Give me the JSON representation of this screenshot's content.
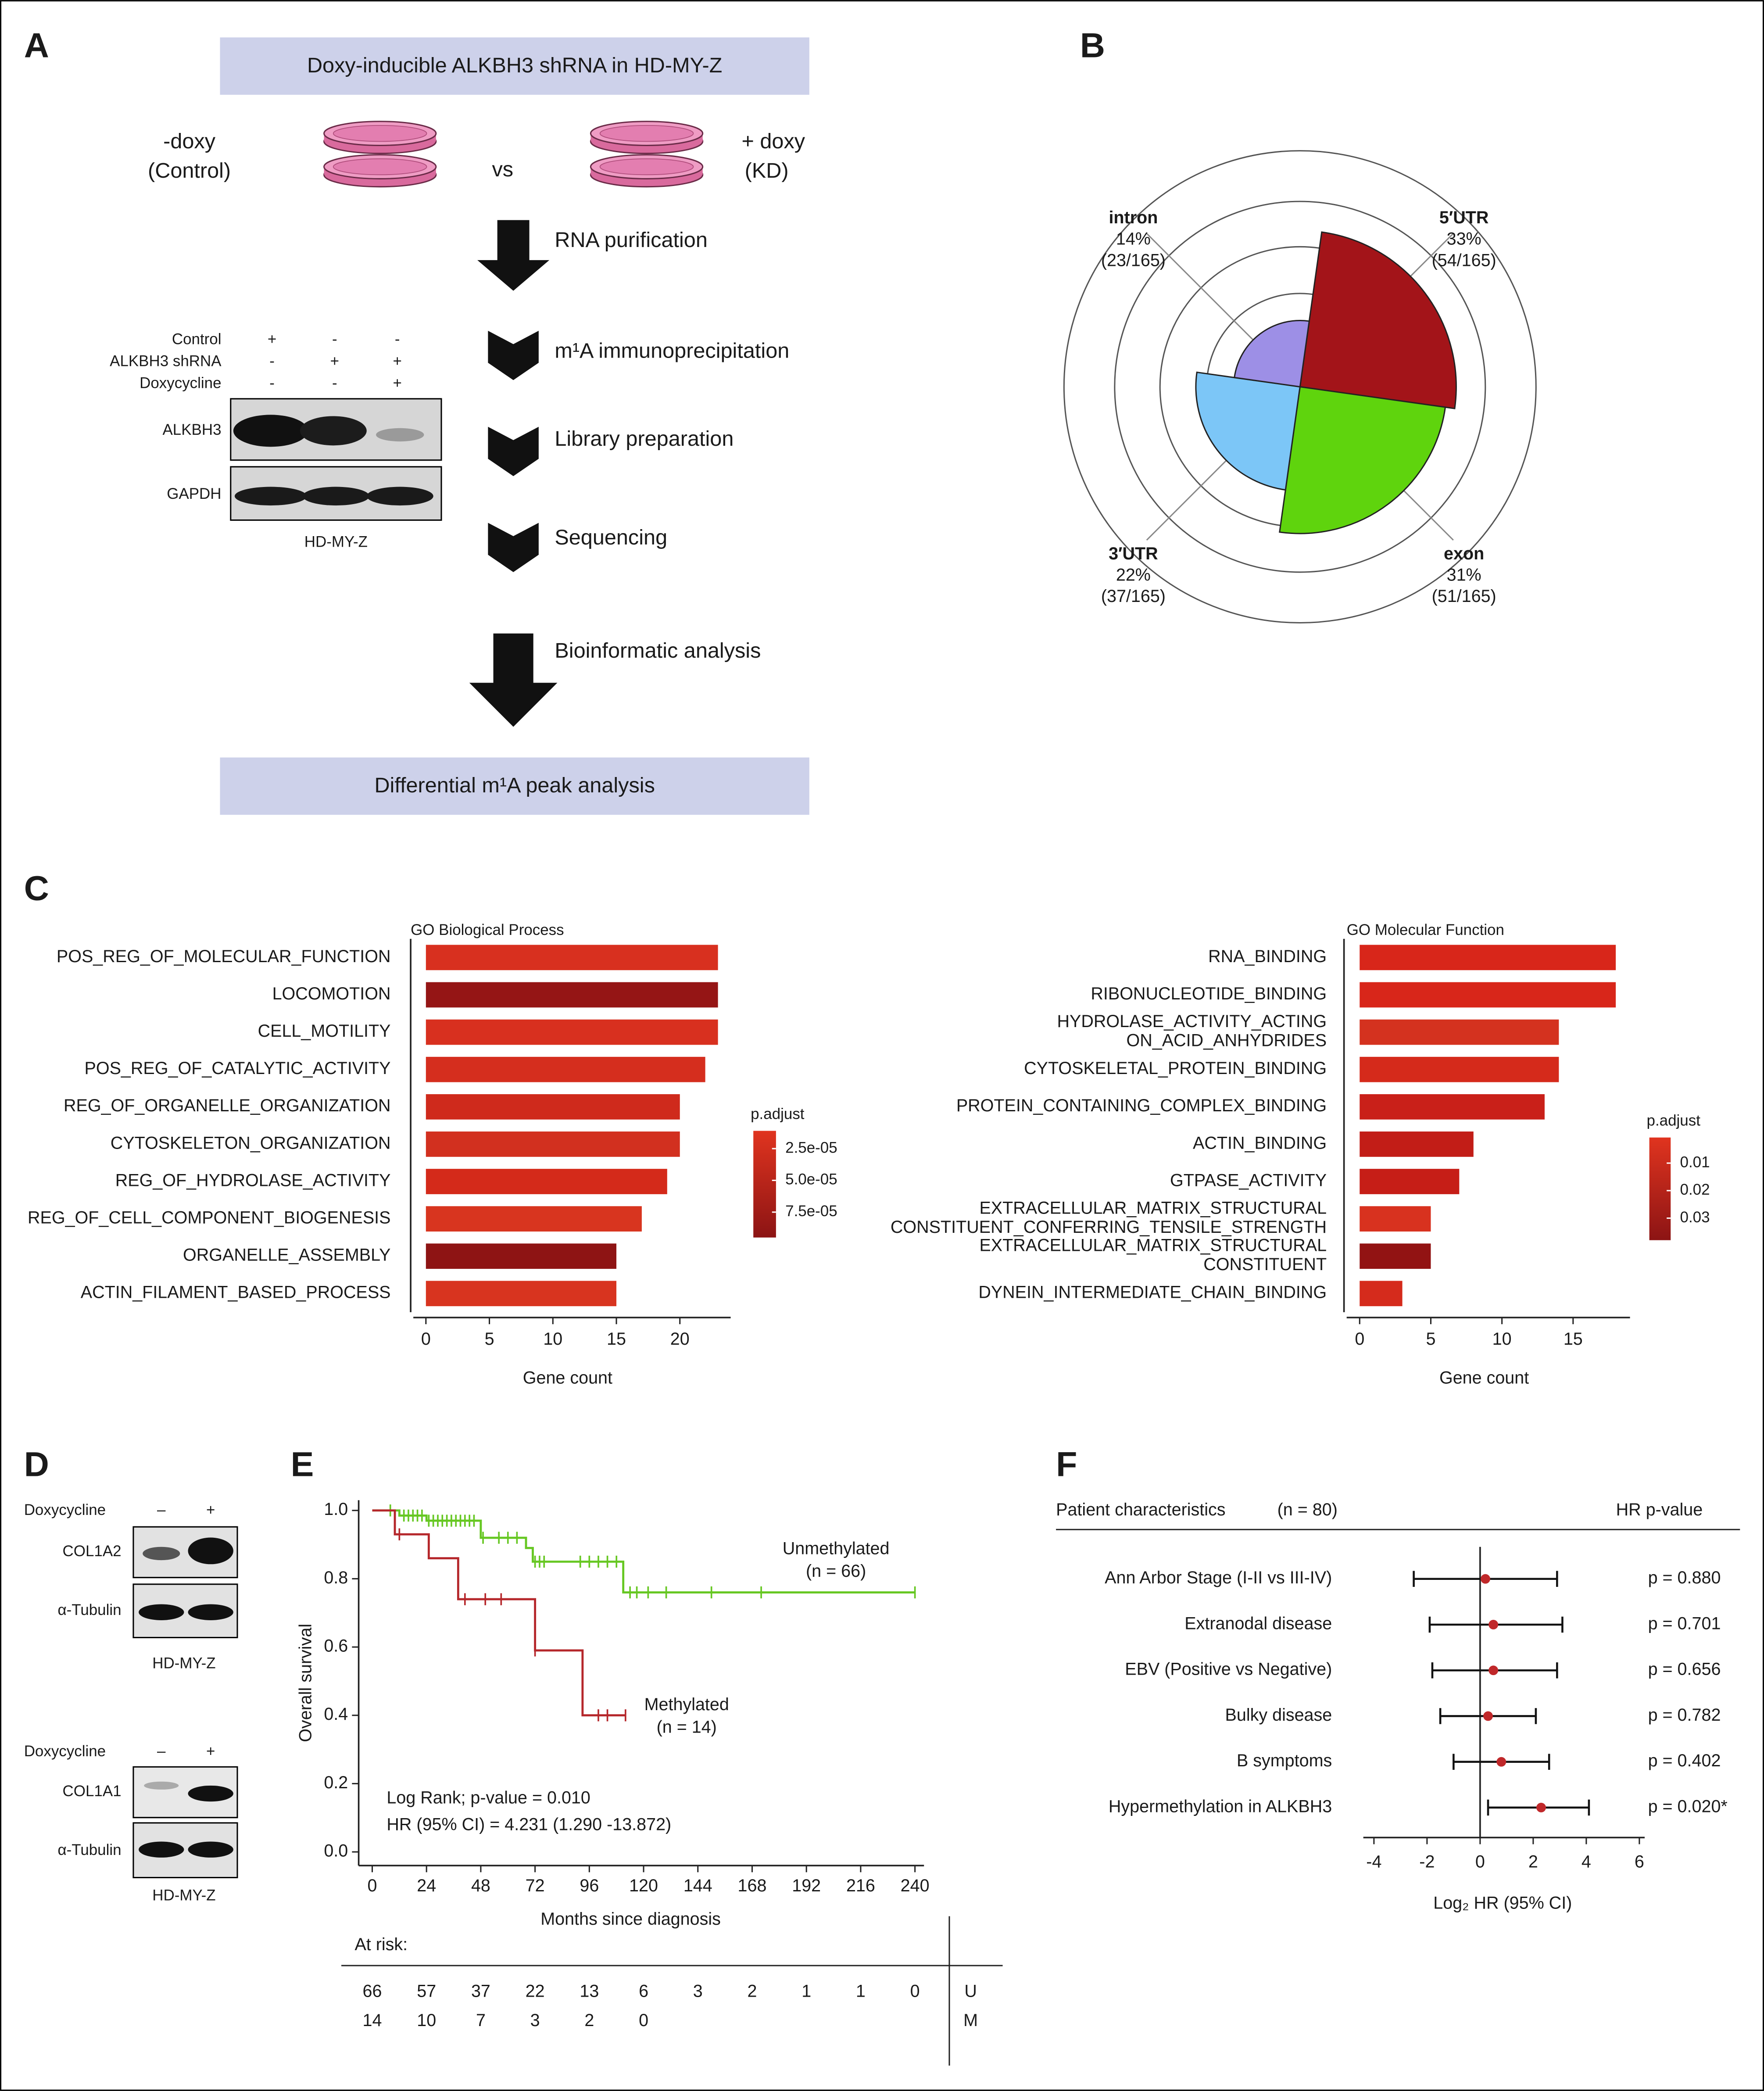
{
  "panel_labels": [
    "A",
    "B",
    "C",
    "D",
    "E",
    "F"
  ],
  "panel_a": {
    "header": "Doxy-inducible ALKBH3 shRNA in HD-MY-Z",
    "control_label": [
      "-doxy",
      "(Control)"
    ],
    "vs": "vs",
    "kd_label": [
      "+ doxy",
      "(KD)"
    ],
    "steps": [
      "RNA purification",
      "m¹A immunoprecipitation",
      "Library preparation",
      "Sequencing",
      "Bioinformatic analysis"
    ],
    "footer": "Differential m¹A peak analysis",
    "blot": {
      "conditions": [
        "Control",
        "ALKBH3 shRNA",
        "Doxycycline"
      ],
      "signs": [
        [
          "+",
          "-",
          "-"
        ],
        [
          "-",
          "+",
          "+"
        ],
        [
          "-",
          "-",
          "+"
        ]
      ],
      "bands": [
        "ALKBH3",
        "GAPDH"
      ],
      "cell_line": "HD-MY-Z"
    }
  },
  "panel_d": {
    "blots": [
      {
        "treatment": "Doxycycline",
        "signs": [
          "–",
          "+"
        ],
        "bands": [
          "COL1A2",
          "α-Tubulin"
        ],
        "cell_line": "HD-MY-Z"
      },
      {
        "treatment": "Doxycycline",
        "signs": [
          "–",
          "+"
        ],
        "bands": [
          "COL1A1",
          "α-Tubulin"
        ],
        "cell_line": "HD-MY-Z"
      }
    ]
  },
  "chart_data": [
    {
      "type": "rose",
      "categories": [
        "5′UTR",
        "exon",
        "3′UTR",
        "intron"
      ],
      "values": [
        33,
        31,
        22,
        14
      ],
      "value_labels": [
        "33%",
        "31%",
        "22%",
        "14%"
      ],
      "count_labels": [
        "(54/165)",
        "(51/165)",
        "(37/165)",
        "(23/165)"
      ],
      "colors": [
        "#a31419",
        "#5fd40d",
        "#7cc6f7",
        "#9d8fe6"
      ]
    },
    {
      "type": "hbar",
      "title": "GO Biological Process",
      "xlabel": "Gene count",
      "categories": [
        "POS_REG_OF_MOLECULAR_FUNCTION",
        "LOCOMOTION",
        "CELL_MOTILITY",
        "POS_REG_OF_CATALYTIC_ACTIVITY",
        "REG_OF_ORGANELLE_ORGANIZATION",
        "CYTOSKELETON_ORGANIZATION",
        "REG_OF_HYDROLASE_ACTIVITY",
        "REG_OF_CELL_COMPONENT_BIOGENESIS",
        "ORGANELLE_ASSEMBLY",
        "ACTIN_FILAMENT_BASED_PROCESS"
      ],
      "values": [
        23,
        23,
        23,
        22,
        20,
        20,
        19,
        17,
        15,
        15
      ],
      "colors": [
        "#d8301f",
        "#951515",
        "#d8301f",
        "#d52e1e",
        "#cf2a1c",
        "#d2301f",
        "#d42a1a",
        "#d8351f",
        "#8e1414",
        "#d8341f"
      ],
      "xlim": [
        -1.2,
        24
      ],
      "xticks": [
        0,
        5,
        10,
        15,
        20
      ],
      "colorbar": {
        "title": "p.adjust",
        "lim": [
          1.1e-05,
          9.5e-05
        ],
        "ticks": [
          {
            "value": 2.5e-05,
            "label": "2.5e-05"
          },
          {
            "value": 5e-05,
            "label": "5.0e-05"
          },
          {
            "value": 7.5e-05,
            "label": "7.5e-05"
          }
        ],
        "colors": [
          "#e0341f",
          "#8c1414"
        ]
      }
    },
    {
      "type": "hbar",
      "title": "GO Molecular Function",
      "xlabel": "Gene count",
      "categories": [
        "RNA_BINDING",
        "RIBONUCLEOTIDE_BINDING",
        "HYDROLASE_ACTIVITY_ACTING\nON_ACID_ANHYDRIDES",
        "CYTOSKELETAL_PROTEIN_BINDING",
        "PROTEIN_CONTAINING_COMPLEX_BINDING",
        "ACTIN_BINDING",
        "GTPASE_ACTIVITY",
        "EXTRACELLULAR_MATRIX_STRUCTURAL\nCONSTITUENT_CONFERRING_TENSILE_STRENGTH",
        "EXTRACELLULAR_MATRIX_STRUCTURAL\nCONSTITUENT",
        "DYNEIN_INTERMEDIATE_CHAIN_BINDING"
      ],
      "values": [
        18,
        18,
        14,
        14,
        13,
        8,
        7,
        5,
        5,
        3
      ],
      "colors": [
        "#d8261a",
        "#d8261a",
        "#d4321f",
        "#d52a1b",
        "#c92019",
        "#c21d17",
        "#c61e17",
        "#d8321f",
        "#921313",
        "#d52b1c"
      ],
      "xlim": [
        -1.1,
        19
      ],
      "xticks": [
        0,
        5,
        10,
        15
      ],
      "colorbar": {
        "title": "p.adjust",
        "lim": [
          0.0007,
          0.038
        ],
        "ticks": [
          0.01,
          0.02,
          0.03
        ],
        "colors": [
          "#e0341f",
          "#8c1414"
        ]
      }
    },
    {
      "type": "survival",
      "xlabel": "Months since diagnosis",
      "ylabel": "Overall survival",
      "xlim": [
        -6,
        244
      ],
      "ylim": [
        -0.04,
        1.03
      ],
      "xticks": [
        0,
        24,
        48,
        72,
        96,
        120,
        144,
        168,
        192,
        216,
        240
      ],
      "yticks": [
        {
          "value": 0,
          "label": "0.0"
        },
        0.2,
        0.4,
        0.6,
        0.8,
        {
          "value": 1,
          "label": "1.0"
        }
      ],
      "series": [
        {
          "name": "Unmethylated",
          "n_label": "(n = 66)",
          "color": "#66c722",
          "x": [
            0,
            12,
            24,
            48,
            68,
            71,
            111,
            240
          ],
          "values": [
            1.0,
            0.985,
            0.97,
            0.92,
            0.89,
            0.85,
            0.76,
            0.76
          ],
          "censored": [
            8,
            14,
            16,
            18,
            20,
            22,
            25,
            27,
            29,
            31,
            33,
            35,
            37,
            39,
            41,
            43,
            45,
            49,
            56,
            60,
            64,
            72,
            74,
            76,
            92,
            96,
            100,
            104,
            108,
            114,
            117,
            122,
            130,
            150,
            172,
            240
          ]
        },
        {
          "name": "Methylated",
          "n_label": "(n = 14)",
          "color": "#b5272b",
          "x": [
            0,
            10,
            25,
            38,
            72,
            93,
            112
          ],
          "values": [
            1.0,
            0.93,
            0.86,
            0.74,
            0.59,
            0.4,
            0.4
          ],
          "censored": [
            12,
            41,
            50,
            57,
            72,
            100,
            104,
            112
          ]
        }
      ],
      "annotations": [
        "Log Rank; p-value = 0.010",
        "HR (95% CI) = 4.231 (1.290 -13.872)"
      ],
      "at_risk": {
        "title": "At risk:",
        "rows": [
          {
            "label": "U",
            "values": [
              66,
              57,
              37,
              22,
              13,
              6,
              3,
              2,
              1,
              1,
              0
            ]
          },
          {
            "label": "M",
            "values": [
              14,
              10,
              7,
              3,
              2,
              0
            ]
          }
        ]
      }
    },
    {
      "type": "forest",
      "header": [
        "Patient characteristics",
        "(n = 80)",
        "HR p-value"
      ],
      "xlabel": "Log₂ HR (95% CI)",
      "categories": [
        "Ann Arbor Stage (I-II vs III-IV)",
        "Extranodal disease",
        "EBV (Positive vs Negative)",
        "Bulky disease",
        "B symptoms",
        "Hypermethylation in ALKBH3"
      ],
      "values": [
        0.2,
        0.5,
        0.5,
        0.3,
        0.8,
        2.3
      ],
      "ci_low": [
        -2.5,
        -1.9,
        -1.8,
        -1.5,
        -1.0,
        0.3
      ],
      "ci_high": [
        2.9,
        3.1,
        2.9,
        2.1,
        2.6,
        4.1
      ],
      "p_labels": [
        "p = 0.880",
        "p = 0.701",
        "p = 0.656",
        "p = 0.782",
        "p = 0.402",
        "p = 0.020*"
      ],
      "color": "#c0282a",
      "xlim": [
        -4.5,
        6.2
      ],
      "xticks": [
        -4,
        -2,
        0,
        2,
        4,
        6
      ]
    }
  ]
}
